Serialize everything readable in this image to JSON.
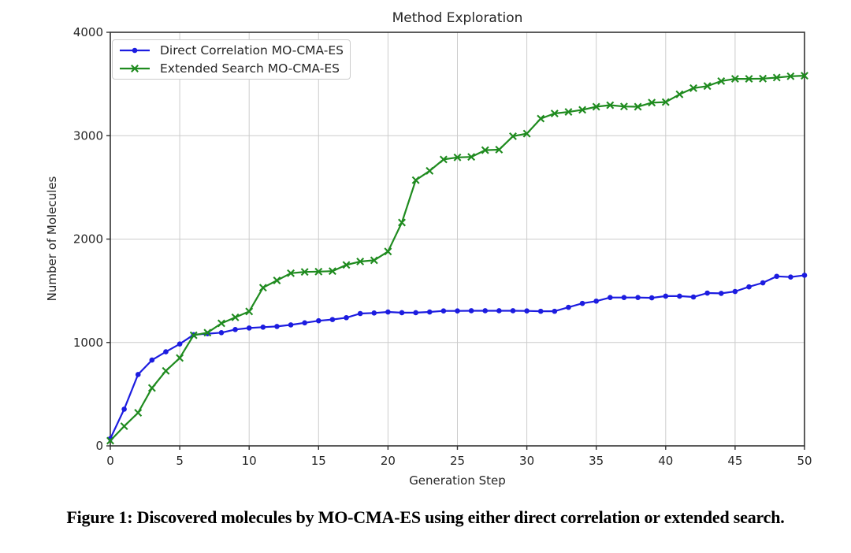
{
  "figure": {
    "caption": "Figure 1: Discovered molecules by MO-CMA-ES using either direct correlation or extended search."
  },
  "chart_data": {
    "type": "line",
    "title": "Method Exploration",
    "xlabel": "Generation Step",
    "ylabel": "Number of Molecules",
    "xlim": [
      0,
      50
    ],
    "ylim": [
      0,
      4000
    ],
    "x_ticks": [
      0,
      5,
      10,
      15,
      20,
      25,
      30,
      35,
      40,
      45,
      50
    ],
    "y_ticks": [
      0,
      1000,
      2000,
      3000,
      4000
    ],
    "grid": true,
    "legend_position": "upper-left",
    "x": [
      0,
      1,
      2,
      3,
      4,
      5,
      6,
      7,
      8,
      9,
      10,
      11,
      12,
      13,
      14,
      15,
      16,
      17,
      18,
      19,
      20,
      21,
      22,
      23,
      24,
      25,
      26,
      27,
      28,
      29,
      30,
      31,
      32,
      33,
      34,
      35,
      36,
      37,
      38,
      39,
      40,
      41,
      42,
      43,
      44,
      45,
      46,
      47,
      48,
      49,
      50
    ],
    "series": [
      {
        "name": "Direct Correlation MO-CMA-ES",
        "color": "#1c1ce0",
        "marker": "circle",
        "values": [
          70,
          355,
          690,
          830,
          910,
          985,
          1075,
          1085,
          1095,
          1125,
          1140,
          1148,
          1155,
          1170,
          1190,
          1210,
          1222,
          1240,
          1280,
          1285,
          1295,
          1288,
          1288,
          1295,
          1305,
          1305,
          1307,
          1307,
          1307,
          1307,
          1305,
          1302,
          1302,
          1340,
          1378,
          1400,
          1435,
          1435,
          1435,
          1432,
          1448,
          1448,
          1440,
          1478,
          1475,
          1493,
          1538,
          1577,
          1640,
          1633,
          1650
        ]
      },
      {
        "name": "Extended Search MO-CMA-ES",
        "color": "#1f8b1f",
        "marker": "x",
        "values": [
          50,
          190,
          320,
          560,
          725,
          850,
          1070,
          1095,
          1185,
          1243,
          1300,
          1530,
          1600,
          1670,
          1682,
          1685,
          1690,
          1750,
          1783,
          1795,
          1880,
          2160,
          2570,
          2660,
          2770,
          2790,
          2795,
          2860,
          2865,
          2995,
          3020,
          3165,
          3215,
          3230,
          3250,
          3280,
          3295,
          3282,
          3280,
          3320,
          3325,
          3400,
          3460,
          3480,
          3528,
          3550,
          3550,
          3552,
          3562,
          3575,
          3580
        ]
      }
    ],
    "style": {
      "grid_color": "#cccccc",
      "spine_color": "#333333",
      "tick_text_color": "#262626",
      "background": "#ffffff"
    }
  }
}
